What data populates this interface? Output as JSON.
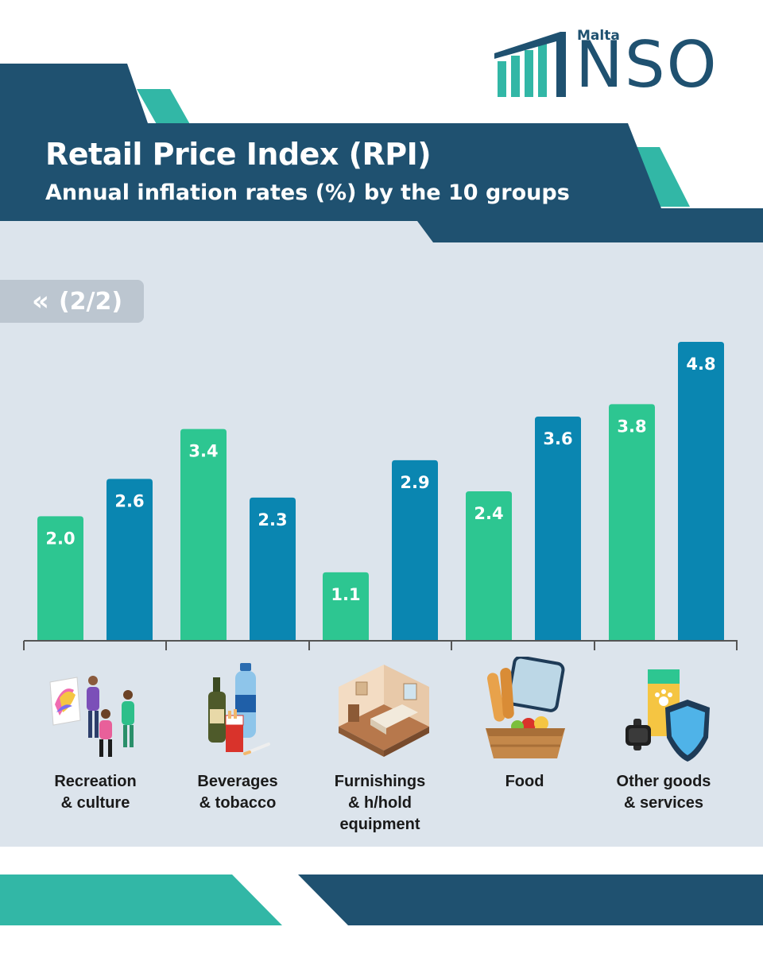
{
  "header": {
    "title": "Retail Price Index (RPI)",
    "subtitle": "Annual inflation rates (%) by the 10 groups"
  },
  "logo": {
    "small_text": "Malta",
    "big_text": "NSO"
  },
  "pager": {
    "arrow": "«",
    "label": "(2/2)"
  },
  "colors": {
    "navy": "#1f5170",
    "teal": "#32b7a6",
    "green": "#2dc691",
    "blue": "#0a86b1",
    "panel": "#dce4ec",
    "axis": "#555555"
  },
  "chart_data": {
    "type": "bar",
    "title": "Retail Price Index (RPI)",
    "subtitle": "Annual inflation rates (%) by the 10 groups",
    "categories": [
      "Recreation & culture",
      "Beverages & tobacco",
      "Furnishings & h/hold equipment",
      "Food",
      "Other goods & services"
    ],
    "label_lines": [
      [
        "Recreation",
        "& culture"
      ],
      [
        "Beverages",
        "& tobacco"
      ],
      [
        "Furnishings",
        "& h/hold",
        "equipment"
      ],
      [
        "Food"
      ],
      [
        "Other goods",
        "& services"
      ]
    ],
    "series": [
      {
        "color": "#2dc691",
        "values": [
          2.0,
          3.4,
          1.1,
          2.4,
          3.8
        ]
      },
      {
        "color": "#0a86b1",
        "values": [
          2.6,
          2.3,
          2.9,
          3.6,
          4.8
        ]
      }
    ],
    "value_labels": [
      [
        "2.0",
        "3.4",
        "1.1",
        "2.4",
        "3.8"
      ],
      [
        "2.6",
        "2.3",
        "2.9",
        "3.6",
        "4.8"
      ]
    ],
    "ylim": [
      0,
      5
    ],
    "grid": false,
    "legend": "none",
    "icons": [
      "recreation-icon",
      "beverages-tobacco-icon",
      "furnishings-icon",
      "food-basket-icon",
      "other-goods-icon"
    ]
  }
}
